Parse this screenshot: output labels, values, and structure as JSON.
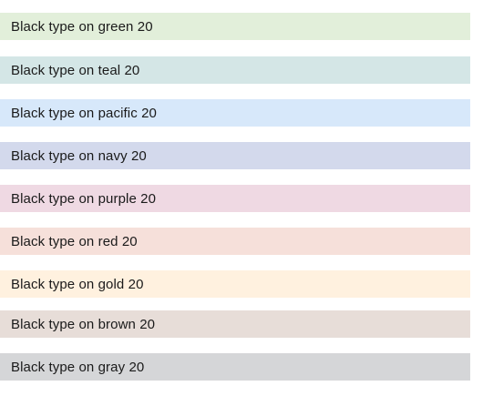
{
  "swatches": [
    {
      "label": "Black type on green 20",
      "bg": "#e2efda"
    },
    {
      "label": "Black type on teal 20",
      "bg": "#d4e6e6"
    },
    {
      "label": "Black type on pacific 20",
      "bg": "#d7e8fa"
    },
    {
      "label": "Black type on navy 20",
      "bg": "#d3d9ec"
    },
    {
      "label": "Black type on purple 20",
      "bg": "#efd9e3"
    },
    {
      "label": "Black type on red 20",
      "bg": "#f6e0da"
    },
    {
      "label": "Black type on gold 20",
      "bg": "#fff1df"
    },
    {
      "label": "Black type on brown 20",
      "bg": "#e7ddd8"
    },
    {
      "label": "Black type on gray 20",
      "bg": "#d5d6d8"
    }
  ]
}
